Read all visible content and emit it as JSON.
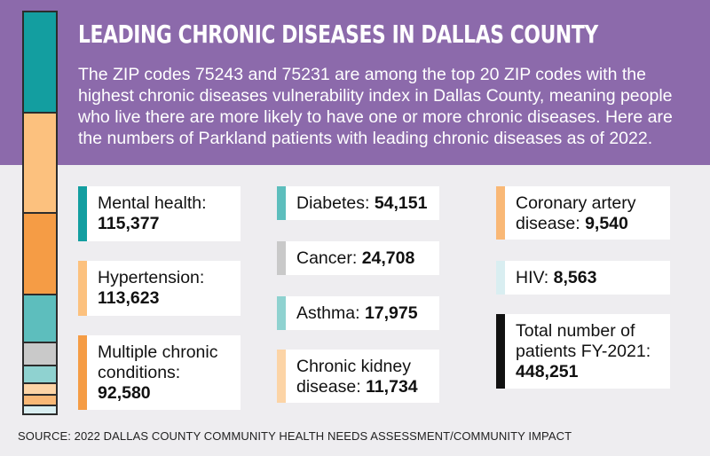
{
  "title": "LEADING CHRONIC DISEASES IN DALLAS COUNTY",
  "intro": "The ZIP codes 75243 and 75231 are among the top 20 ZIP codes with the highest chronic diseases vulnerability index in Dallas County, meaning people who live there are more likely to have one or more chronic diseases. Here are the numbers of Parkland patients with leading chronic diseases as of 2022.",
  "source": "SOURCE: 2022 DALLAS COUNTY COMMUNITY HEALTH NEEDS ASSESSMENT/COMMUNITY IMPACT",
  "chart_data": {
    "type": "bar",
    "title": "LEADING CHRONIC DISEASES IN DALLAS COUNTY",
    "categories": [
      "Mental health",
      "Hypertension",
      "Multiple chronic conditions",
      "Diabetes",
      "Cancer",
      "Asthma",
      "Chronic kidney disease",
      "Coronary artery disease",
      "HIV"
    ],
    "values": [
      115377,
      113623,
      92580,
      54151,
      24708,
      17975,
      11734,
      9540,
      8563
    ],
    "total": 448251,
    "total_label": "Total number of patients FY-2021",
    "colors": [
      "#139ea0",
      "#fcc17e",
      "#f59c45",
      "#5dbebd",
      "#c9c9c9",
      "#8fd2d0",
      "#fcd4a6",
      "#f9b876",
      "#d9eef1"
    ]
  },
  "cards": [
    {
      "line1": "Mental health:",
      "line2": "",
      "value": "115,377",
      "color": "#139ea0"
    },
    {
      "line1": "Hypertension:",
      "line2": "",
      "value": "113,623",
      "color": "#fcc17e"
    },
    {
      "line1": "Multiple chronic",
      "line2": "conditions:",
      "value": "92,580",
      "color": "#f59c45"
    },
    {
      "line1": "Diabetes:",
      "line2": "",
      "value": "54,151",
      "color": "#5dbebd"
    },
    {
      "line1": "Cancer:",
      "line2": "",
      "value": "24,708",
      "color": "#c9c9c9"
    },
    {
      "line1": "Asthma:",
      "line2": "",
      "value": "17,975",
      "color": "#8fd2d0"
    },
    {
      "line1": "Chronic kidney",
      "line2": "disease:",
      "value": "11,734",
      "color": "#fcd4a6"
    },
    {
      "line1": "Coronary artery",
      "line2": "disease:",
      "value": "9,540",
      "color": "#f9b876"
    },
    {
      "line1": "HIV:",
      "line2": "",
      "value": "8,563",
      "color": "#d9eef1"
    },
    {
      "line1": "Total number of",
      "line2": "patients FY-2021:",
      "value": "448,251",
      "color": "#111111"
    }
  ]
}
